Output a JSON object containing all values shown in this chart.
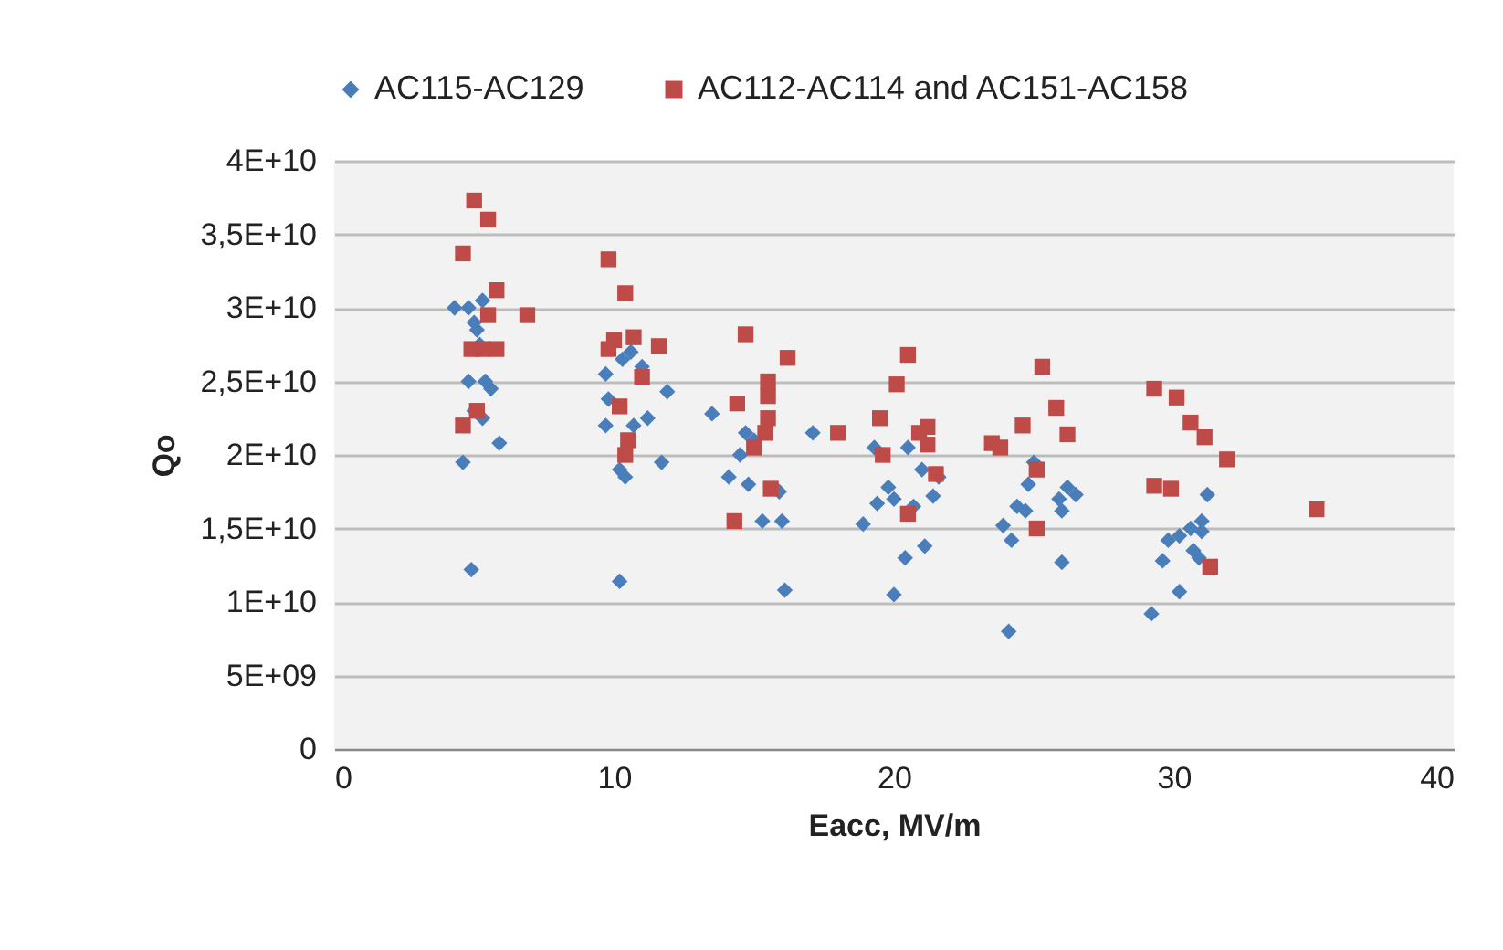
{
  "chart_data": {
    "type": "scatter",
    "xlabel": "Eacc, MV/m",
    "ylabel": "Qo",
    "xlim": [
      0,
      40
    ],
    "xticks": [
      0,
      10,
      20,
      30,
      40
    ],
    "ylim": [
      0,
      40000000000
    ],
    "yticks": [
      {
        "value": 0,
        "label": "0"
      },
      {
        "value": 5000000000,
        "label": "5E+09"
      },
      {
        "value": 10000000000,
        "label": "1E+10"
      },
      {
        "value": 15000000000,
        "label": "1,5E+10"
      },
      {
        "value": 20000000000,
        "label": "2E+10"
      },
      {
        "value": 25000000000,
        "label": "2,5E+10"
      },
      {
        "value": 30000000000,
        "label": "3E+10"
      },
      {
        "value": 35000000000,
        "label": "3,5E+10"
      },
      {
        "value": 40000000000,
        "label": "4E+10"
      }
    ],
    "grid": "y",
    "legend": "top",
    "series": [
      {
        "name": "AC115-AC129",
        "color": "#4a7ebb",
        "marker": "diamond",
        "x": [
          4.3,
          4.8,
          5.0,
          5.3,
          5.1,
          5.2,
          4.8,
          5.4,
          5.6,
          4.6,
          5.9,
          4.9,
          5.0,
          5.3,
          9.7,
          9.8,
          10.3,
          10.6,
          9.7,
          10.2,
          10.4,
          10.7,
          11.2,
          11.9,
          11.7,
          10.2,
          11.0,
          13.5,
          14.1,
          14.8,
          15.0,
          14.5,
          15.3,
          15.9,
          16.0,
          16.1,
          17.1,
          14.7,
          18.9,
          19.4,
          19.8,
          20.0,
          19.3,
          20.5,
          21.0,
          20.7,
          20.0,
          20.4,
          21.1,
          21.4,
          21.6,
          23.9,
          24.2,
          24.4,
          24.8,
          25.0,
          24.7,
          25.9,
          26.2,
          26.5,
          26.0,
          26.0,
          24.1,
          29.2,
          29.6,
          29.8,
          30.2,
          30.6,
          31.0,
          30.7,
          31.2,
          31.0,
          30.2,
          30.9
        ],
        "values": [
          30000000000.0,
          30000000000.0,
          29000000000.0,
          30500000000.0,
          28500000000.0,
          27500000000.0,
          25000000000.0,
          25000000000.0,
          24500000000.0,
          19500000000.0,
          20800000000.0,
          12200000000.0,
          23000000000.0,
          22500000000.0,
          25500000000.0,
          23800000000.0,
          26500000000.0,
          27000000000.0,
          22000000000.0,
          19000000000.0,
          18500000000.0,
          22000000000.0,
          22500000000.0,
          24300000000.0,
          19500000000.0,
          11400000000.0,
          26000000000.0,
          22800000000.0,
          18500000000.0,
          18000000000.0,
          21000000000.0,
          20000000000.0,
          15500000000.0,
          17500000000.0,
          15500000000.0,
          10800000000.0,
          21500000000.0,
          21500000000.0,
          15300000000.0,
          16700000000.0,
          17800000000.0,
          17000000000.0,
          20500000000.0,
          20500000000.0,
          19000000000.0,
          16500000000.0,
          10500000000.0,
          13000000000.0,
          13800000000.0,
          17200000000.0,
          18500000000.0,
          15200000000.0,
          14200000000.0,
          16500000000.0,
          18000000000.0,
          19500000000.0,
          16200000000.0,
          17000000000.0,
          17800000000.0,
          17300000000.0,
          16200000000.0,
          12700000000.0,
          8000000000.0,
          9200000000.0,
          12800000000.0,
          14200000000.0,
          14500000000.0,
          15000000000.0,
          15500000000.0,
          13500000000.0,
          17300000000.0,
          14800000000.0,
          10700000000.0,
          13000000000.0
        ]
      },
      {
        "name": "AC112-AC114 and AC151-AC158",
        "color": "#be4b48",
        "marker": "square",
        "x": [
          4.6,
          5.0,
          5.5,
          5.8,
          6.9,
          5.5,
          4.9,
          5.8,
          5.1,
          4.6,
          5.3,
          9.8,
          10.4,
          9.8,
          10.0,
          10.7,
          11.6,
          11.0,
          10.2,
          10.5,
          10.4,
          14.3,
          14.4,
          14.7,
          15.0,
          15.5,
          15.5,
          15.5,
          15.6,
          16.2,
          15.4,
          18.0,
          19.5,
          19.6,
          20.1,
          20.5,
          20.9,
          21.2,
          21.5,
          20.5,
          23.5,
          23.8,
          21.2,
          24.6,
          25.1,
          25.1,
          25.3,
          25.8,
          26.2,
          29.3,
          29.3,
          29.9,
          30.1,
          30.6,
          31.1,
          31.9,
          31.3,
          35.1
        ],
        "values": [
          33700000000.0,
          37300000000.0,
          36000000000.0,
          31200000000.0,
          29500000000.0,
          29500000000.0,
          27200000000.0,
          27200000000.0,
          23000000000.0,
          22000000000.0,
          27200000000.0,
          33300000000.0,
          31000000000.0,
          27200000000.0,
          27800000000.0,
          28000000000.0,
          27400000000.0,
          25300000000.0,
          23300000000.0,
          21000000000.0,
          20000000000.0,
          15500000000.0,
          23500000000.0,
          28200000000.0,
          20500000000.0,
          25000000000.0,
          24000000000.0,
          22500000000.0,
          17700000000.0,
          26600000000.0,
          21500000000.0,
          21500000000.0,
          22500000000.0,
          20000000000.0,
          24800000000.0,
          26800000000.0,
          21500000000.0,
          20700000000.0,
          18700000000.0,
          16000000000.0,
          20800000000.0,
          20500000000.0,
          21900000000.0,
          22000000000.0,
          19000000000.0,
          15000000000.0,
          26000000000.0,
          23200000000.0,
          21400000000.0,
          24500000000.0,
          17900000000.0,
          17700000000.0,
          23900000000.0,
          22200000000.0,
          21200000000.0,
          19700000000.0,
          12400000000.0,
          16300000000.0
        ]
      }
    ]
  }
}
